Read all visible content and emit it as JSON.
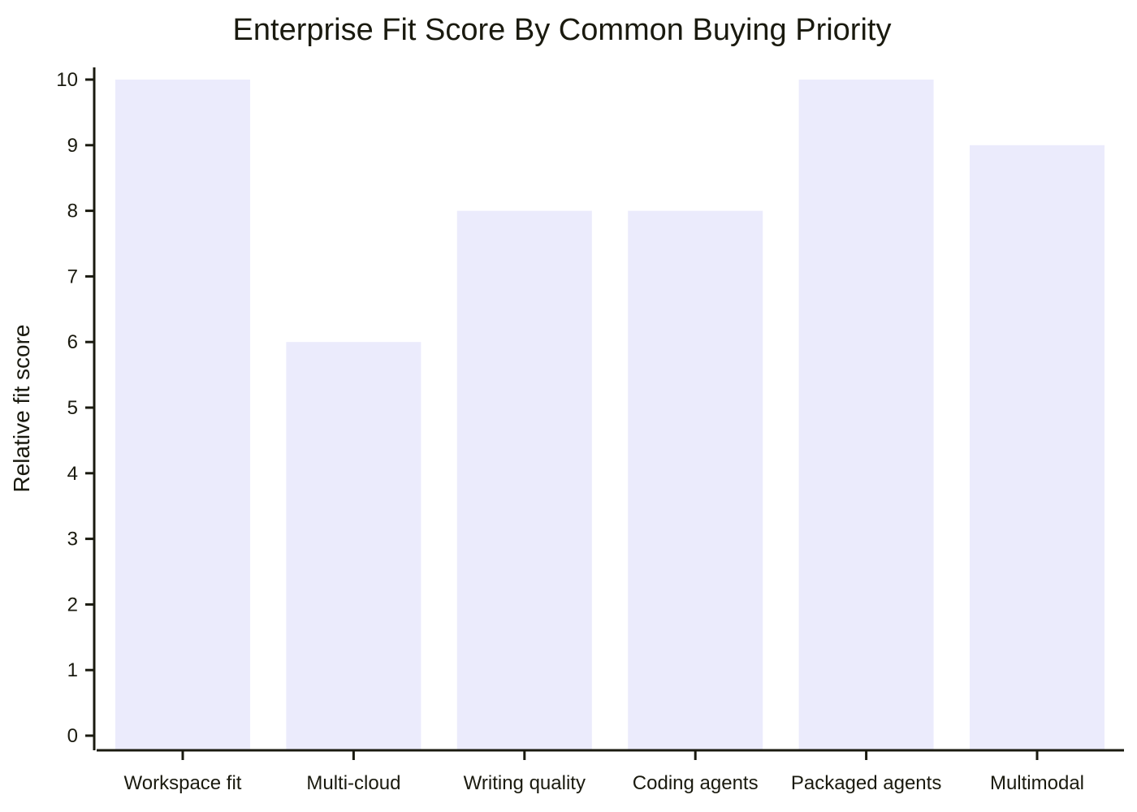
{
  "chart_data": {
    "type": "bar",
    "title": "Enterprise Fit Score By Common Buying Priority",
    "xlabel": "",
    "ylabel": "Relative fit score",
    "categories": [
      "Workspace fit",
      "Multi-cloud",
      "Writing quality",
      "Coding agents",
      "Packaged agents",
      "Multimodal"
    ],
    "values": [
      10,
      6,
      8,
      8,
      10,
      9
    ],
    "ylim": [
      0,
      10
    ],
    "yticks": [
      0,
      1,
      2,
      3,
      4,
      5,
      6,
      7,
      8,
      9,
      10
    ],
    "grid": false,
    "legend": "none",
    "bar_color": "#ebebfc",
    "axis_color": "#1a1a0f"
  }
}
